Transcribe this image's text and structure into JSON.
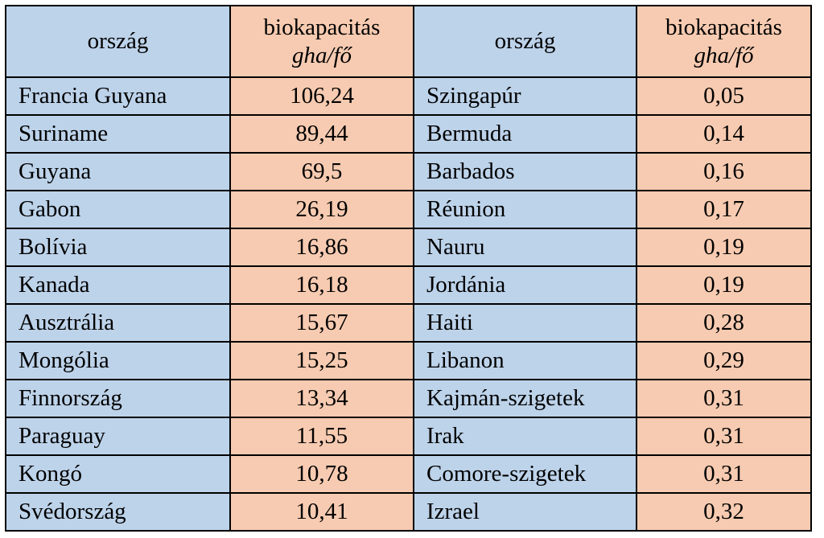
{
  "colors": {
    "country_bg": "#bdd3ea",
    "value_bg": "#f7cbb1",
    "border": "#000000"
  },
  "table": {
    "headers": {
      "country_left": "ország",
      "value_left_line1": "biokapacitás",
      "value_left_line2": "gha/fő",
      "country_right": "ország",
      "value_right_line1": "biokapacitás",
      "value_right_line2": "gha/fő"
    },
    "rows": [
      {
        "country_left": "Francia Guyana",
        "value_left": "106,24",
        "country_right": "Szingapúr",
        "value_right": "0,05"
      },
      {
        "country_left": "Suriname",
        "value_left": "89,44",
        "country_right": "Bermuda",
        "value_right": "0,14"
      },
      {
        "country_left": "Guyana",
        "value_left": "69,5",
        "country_right": "Barbados",
        "value_right": "0,16"
      },
      {
        "country_left": "Gabon",
        "value_left": "26,19",
        "country_right": "Réunion",
        "value_right": "0,17"
      },
      {
        "country_left": "Bolívia",
        "value_left": "16,86",
        "country_right": "Nauru",
        "value_right": "0,19"
      },
      {
        "country_left": "Kanada",
        "value_left": "16,18",
        "country_right": "Jordánia",
        "value_right": "0,19"
      },
      {
        "country_left": "Ausztrália",
        "value_left": "15,67",
        "country_right": "Haiti",
        "value_right": "0,28"
      },
      {
        "country_left": "Mongólia",
        "value_left": "15,25",
        "country_right": "Libanon",
        "value_right": "0,29"
      },
      {
        "country_left": "Finnország",
        "value_left": "13,34",
        "country_right": "Kajmán-szigetek",
        "value_right": "0,31"
      },
      {
        "country_left": "Paraguay",
        "value_left": "11,55",
        "country_right": "Irak",
        "value_right": "0,31"
      },
      {
        "country_left": "Kongó",
        "value_left": "10,78",
        "country_right": "Comore-szigetek",
        "value_right": "0,31"
      },
      {
        "country_left": "Svédország",
        "value_left": "10,41",
        "country_right": "Izrael",
        "value_right": "0,32"
      }
    ]
  }
}
